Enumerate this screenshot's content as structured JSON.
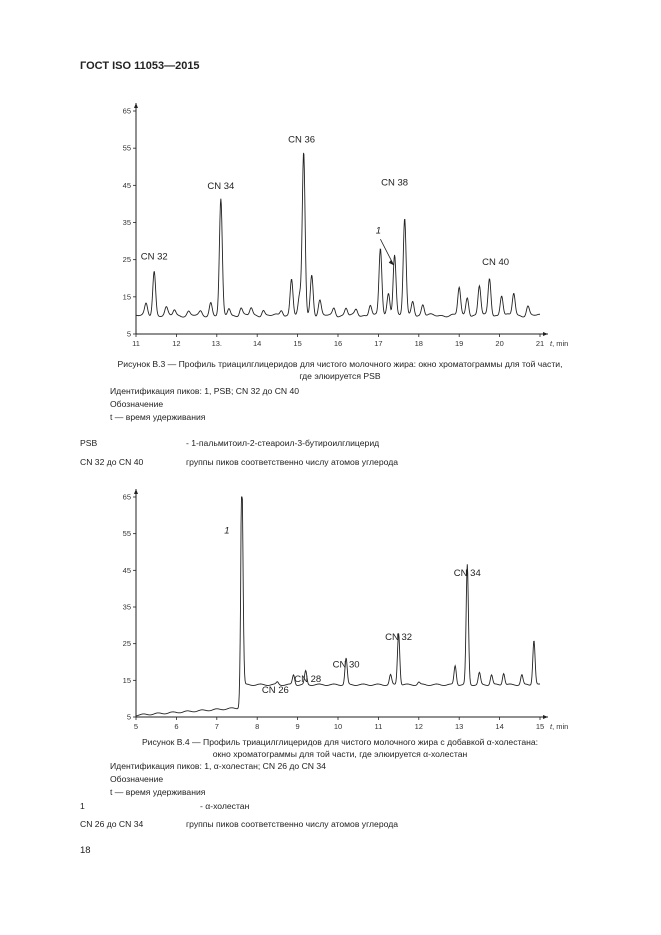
{
  "header": {
    "title": "ГОСТ ISO 11053—2015"
  },
  "figure1": {
    "caption_line1": "Рисунок В.3 — Профиль триацилглицеридов для чистого молочного жира:  окно хроматограммы для той части,",
    "caption_line2": "где элюируется PSB",
    "ident": "Идентификация пиков: 1, PSB; CN 32 до CN 40",
    "legend_title": "Обозначение",
    "legend_t": "t — время удерживания"
  },
  "defs1": [
    {
      "term": "PSB",
      "desc": "- 1-пальмитоил-2-стеароил-3-бутироилглицерид"
    },
    {
      "term": "CN 32 до CN 40",
      "desc": "группы пиков соответственно числу атомов углерода"
    }
  ],
  "figure2": {
    "caption_line1": "Рисунок В.4 — Профиль триацилглицеридов для чистого молочного жира с добавкой α-холестана:",
    "caption_line2": "окно хроматограммы для той части, где элюируется α-холестан",
    "ident": "Идентификация пиков: 1, α-холестан; CN 26 до CN 34",
    "legend_title": "Обозначение",
    "legend_t": "t — время удерживания"
  },
  "defs2": [
    {
      "term": "1",
      "desc": "- α-холестан"
    },
    {
      "term": "CN 26 до CN 34",
      "desc": "группы пиков соответственно числу атомов углерода"
    }
  ],
  "page_number": "18",
  "chart_data": [
    {
      "type": "line",
      "xlim": [
        11,
        21
      ],
      "ylim": [
        5,
        65
      ],
      "x_ticks": [
        "11",
        "12",
        "13.",
        "14",
        "15",
        "16",
        "17",
        "18",
        "19",
        "20",
        "21"
      ],
      "y_ticks": [
        "5",
        "15",
        "25",
        "35",
        "45",
        "55",
        "65"
      ],
      "xlabel": "t, min",
      "baseline": 10,
      "peaks": [
        {
          "x": 11.25,
          "y": 13
        },
        {
          "x": 11.45,
          "y": 22
        },
        {
          "x": 11.75,
          "y": 12
        },
        {
          "x": 11.95,
          "y": 11.5
        },
        {
          "x": 12.3,
          "y": 11
        },
        {
          "x": 12.6,
          "y": 11
        },
        {
          "x": 12.85,
          "y": 13.5
        },
        {
          "x": 13.1,
          "y": 41
        },
        {
          "x": 13.3,
          "y": 12
        },
        {
          "x": 13.6,
          "y": 12
        },
        {
          "x": 13.85,
          "y": 12
        },
        {
          "x": 14.15,
          "y": 11.5
        },
        {
          "x": 14.6,
          "y": 11.5
        },
        {
          "x": 14.85,
          "y": 20
        },
        {
          "x": 15.05,
          "y": 15
        },
        {
          "x": 15.15,
          "y": 54
        },
        {
          "x": 15.35,
          "y": 21
        },
        {
          "x": 15.55,
          "y": 14
        },
        {
          "x": 15.9,
          "y": 12
        },
        {
          "x": 16.2,
          "y": 12
        },
        {
          "x": 16.45,
          "y": 11.5
        },
        {
          "x": 16.8,
          "y": 13
        },
        {
          "x": 17.05,
          "y": 28
        },
        {
          "x": 17.25,
          "y": 16
        },
        {
          "x": 17.4,
          "y": 26.5
        },
        {
          "x": 17.65,
          "y": 36
        },
        {
          "x": 17.85,
          "y": 14
        },
        {
          "x": 18.1,
          "y": 13
        },
        {
          "x": 19.0,
          "y": 17.5
        },
        {
          "x": 19.2,
          "y": 15
        },
        {
          "x": 19.5,
          "y": 18
        },
        {
          "x": 19.75,
          "y": 20
        },
        {
          "x": 20.05,
          "y": 15.5
        },
        {
          "x": 20.35,
          "y": 16
        },
        {
          "x": 20.7,
          "y": 12.5
        }
      ],
      "annotations": [
        {
          "text": "CN 32",
          "x": 11.45,
          "y": 25
        },
        {
          "text": "CN 34",
          "x": 13.1,
          "y": 44
        },
        {
          "text": "CN 36",
          "x": 15.1,
          "y": 56.5
        },
        {
          "text": "CN 38",
          "x": 17.4,
          "y": 45
        },
        {
          "text": "CN 40",
          "x": 19.9,
          "y": 23.5
        },
        {
          "text": "1",
          "x": 17.0,
          "y": 32
        }
      ]
    },
    {
      "type": "line",
      "xlim": [
        5,
        15
      ],
      "ylim": [
        5,
        65
      ],
      "x_ticks": [
        "5",
        "6",
        "7",
        "8",
        "9",
        "10",
        "11",
        "12",
        "13",
        "14",
        "15"
      ],
      "y_ticks": [
        "5",
        "15",
        "25",
        "35",
        "45",
        "55",
        "65"
      ],
      "xlabel": "t, min",
      "baseline_start": 5.5,
      "baseline_end": 7.5,
      "peaks": [
        {
          "x": 7.62,
          "y": 65
        },
        {
          "x": 8.5,
          "y": 9
        },
        {
          "x": 8.9,
          "y": 11
        },
        {
          "x": 9.2,
          "y": 12
        },
        {
          "x": 10.2,
          "y": 15.5
        },
        {
          "x": 11.3,
          "y": 11
        },
        {
          "x": 11.5,
          "y": 22.5
        },
        {
          "x": 12.0,
          "y": 9
        },
        {
          "x": 12.9,
          "y": 13.5
        },
        {
          "x": 13.2,
          "y": 41
        },
        {
          "x": 13.5,
          "y": 11.5
        },
        {
          "x": 13.8,
          "y": 11
        },
        {
          "x": 14.1,
          "y": 11.5
        },
        {
          "x": 14.55,
          "y": 11
        },
        {
          "x": 14.85,
          "y": 20.5
        }
      ],
      "annotations": [
        {
          "text": "CN 26",
          "x": 8.45,
          "y": 11.5
        },
        {
          "text": "CN 28",
          "x": 9.25,
          "y": 14.5
        },
        {
          "text": "CN 30",
          "x": 10.2,
          "y": 18.5
        },
        {
          "text": "CN 32",
          "x": 11.5,
          "y": 26
        },
        {
          "text": "CN 34",
          "x": 13.2,
          "y": 43.5
        },
        {
          "text": "1",
          "x": 7.25,
          "y": 55
        }
      ]
    }
  ]
}
